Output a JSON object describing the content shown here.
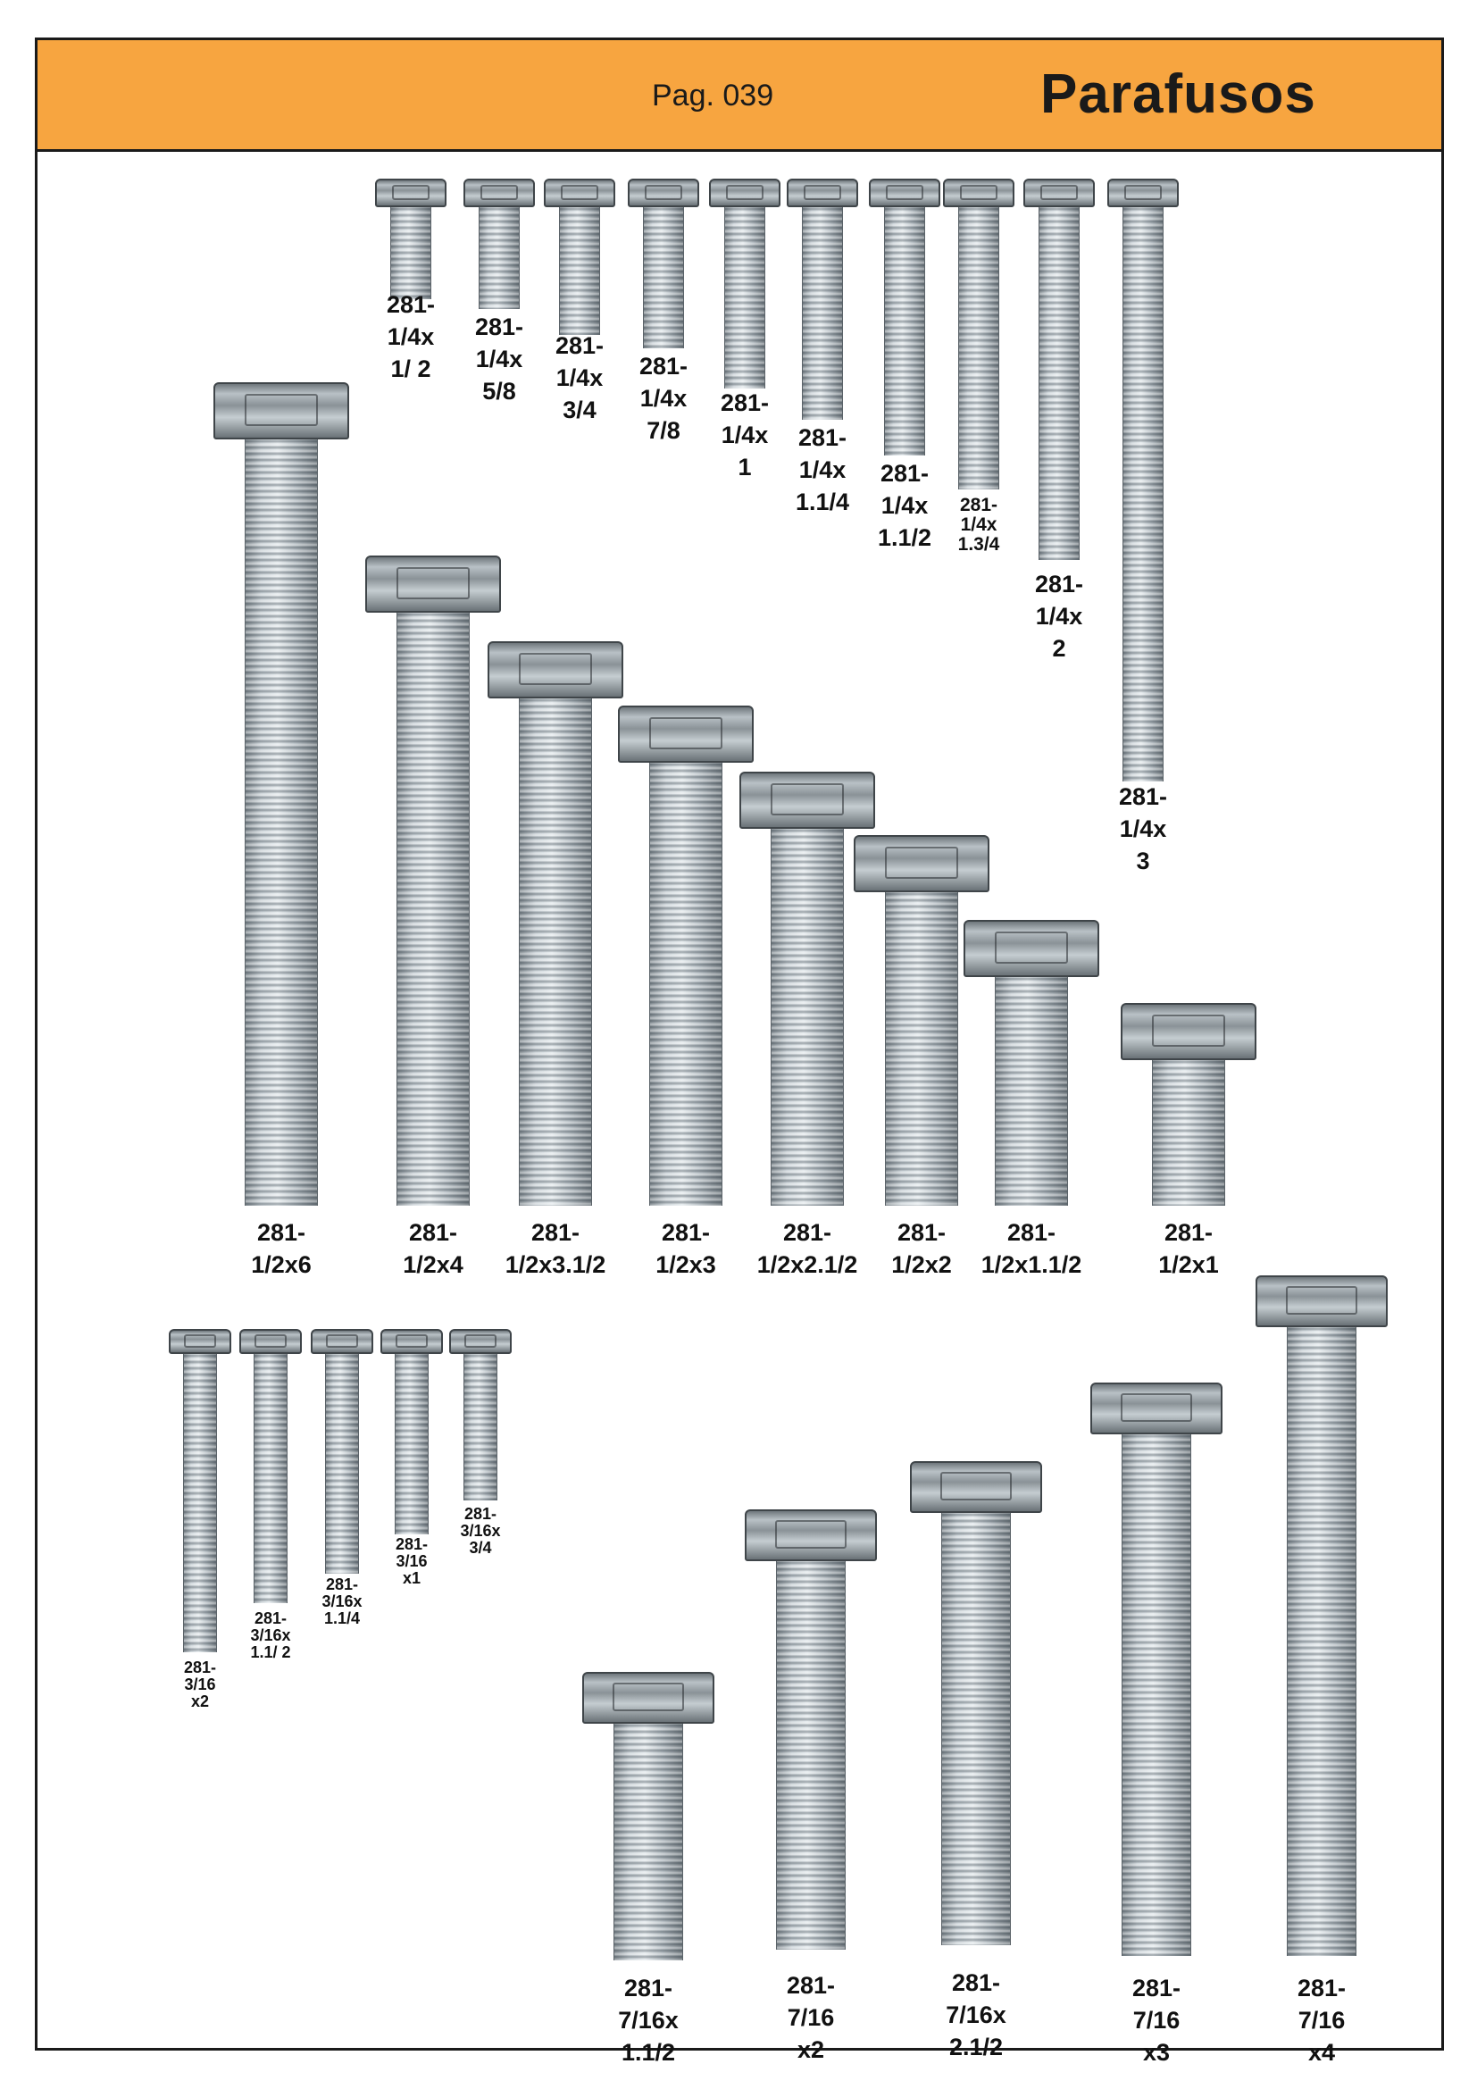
{
  "header": {
    "page": "Pag. 039",
    "title": "Parafusos"
  },
  "colors": {
    "header_band": "#f7a540",
    "border": "#1a1a1a"
  },
  "groups": {
    "quarter": [
      {
        "lines": [
          "281-",
          "1/4x",
          "1/ 2"
        ]
      },
      {
        "lines": [
          "281-",
          "1/4x",
          "5/8"
        ]
      },
      {
        "lines": [
          "281-",
          "1/4x",
          "3/4"
        ]
      },
      {
        "lines": [
          "281-",
          "1/4x",
          "7/8"
        ]
      },
      {
        "lines": [
          "281-",
          "1/4x",
          "1"
        ]
      },
      {
        "lines": [
          "281-",
          "1/4x",
          "1.1/4"
        ]
      },
      {
        "lines": [
          "281-",
          "1/4x",
          "1.1/2"
        ]
      },
      {
        "lines": [
          "281-",
          "1/4x",
          "1.3/4"
        ]
      },
      {
        "lines": [
          "281-",
          "1/4x",
          "2"
        ]
      },
      {
        "lines": [
          "281-",
          "1/4x",
          "3"
        ]
      }
    ],
    "half": [
      {
        "lines": [
          "281-",
          "1/2x6"
        ]
      },
      {
        "lines": [
          "281-",
          "1/2x4"
        ]
      },
      {
        "lines": [
          "281-",
          "1/2x3.1/2"
        ]
      },
      {
        "lines": [
          "281-",
          "1/2x3"
        ]
      },
      {
        "lines": [
          "281-",
          "1/2x2.1/2"
        ]
      },
      {
        "lines": [
          "281-",
          "1/2x2"
        ]
      },
      {
        "lines": [
          "281-",
          "1/2x1.1/2"
        ]
      },
      {
        "lines": [
          "281-",
          "1/2x1"
        ]
      }
    ],
    "three_sixteenths": [
      {
        "lines": [
          "281-",
          "3/16",
          "x2"
        ]
      },
      {
        "lines": [
          "281-",
          "3/16x",
          "1.1/ 2"
        ]
      },
      {
        "lines": [
          "281-",
          "3/16x",
          "1.1/4"
        ]
      },
      {
        "lines": [
          "281-",
          "3/16",
          "x1"
        ]
      },
      {
        "lines": [
          "281-",
          "3/16x",
          "3/4"
        ]
      }
    ],
    "seven_sixteenths": [
      {
        "lines": [
          "281-",
          "7/16x",
          "1.1/2"
        ]
      },
      {
        "lines": [
          "281-",
          "7/16",
          "x2"
        ]
      },
      {
        "lines": [
          "281-",
          "7/16x",
          "2.1/2"
        ]
      },
      {
        "lines": [
          "281-",
          "7/16",
          "x3"
        ]
      },
      {
        "lines": [
          "281-",
          "7/16",
          "x4"
        ]
      }
    ]
  }
}
